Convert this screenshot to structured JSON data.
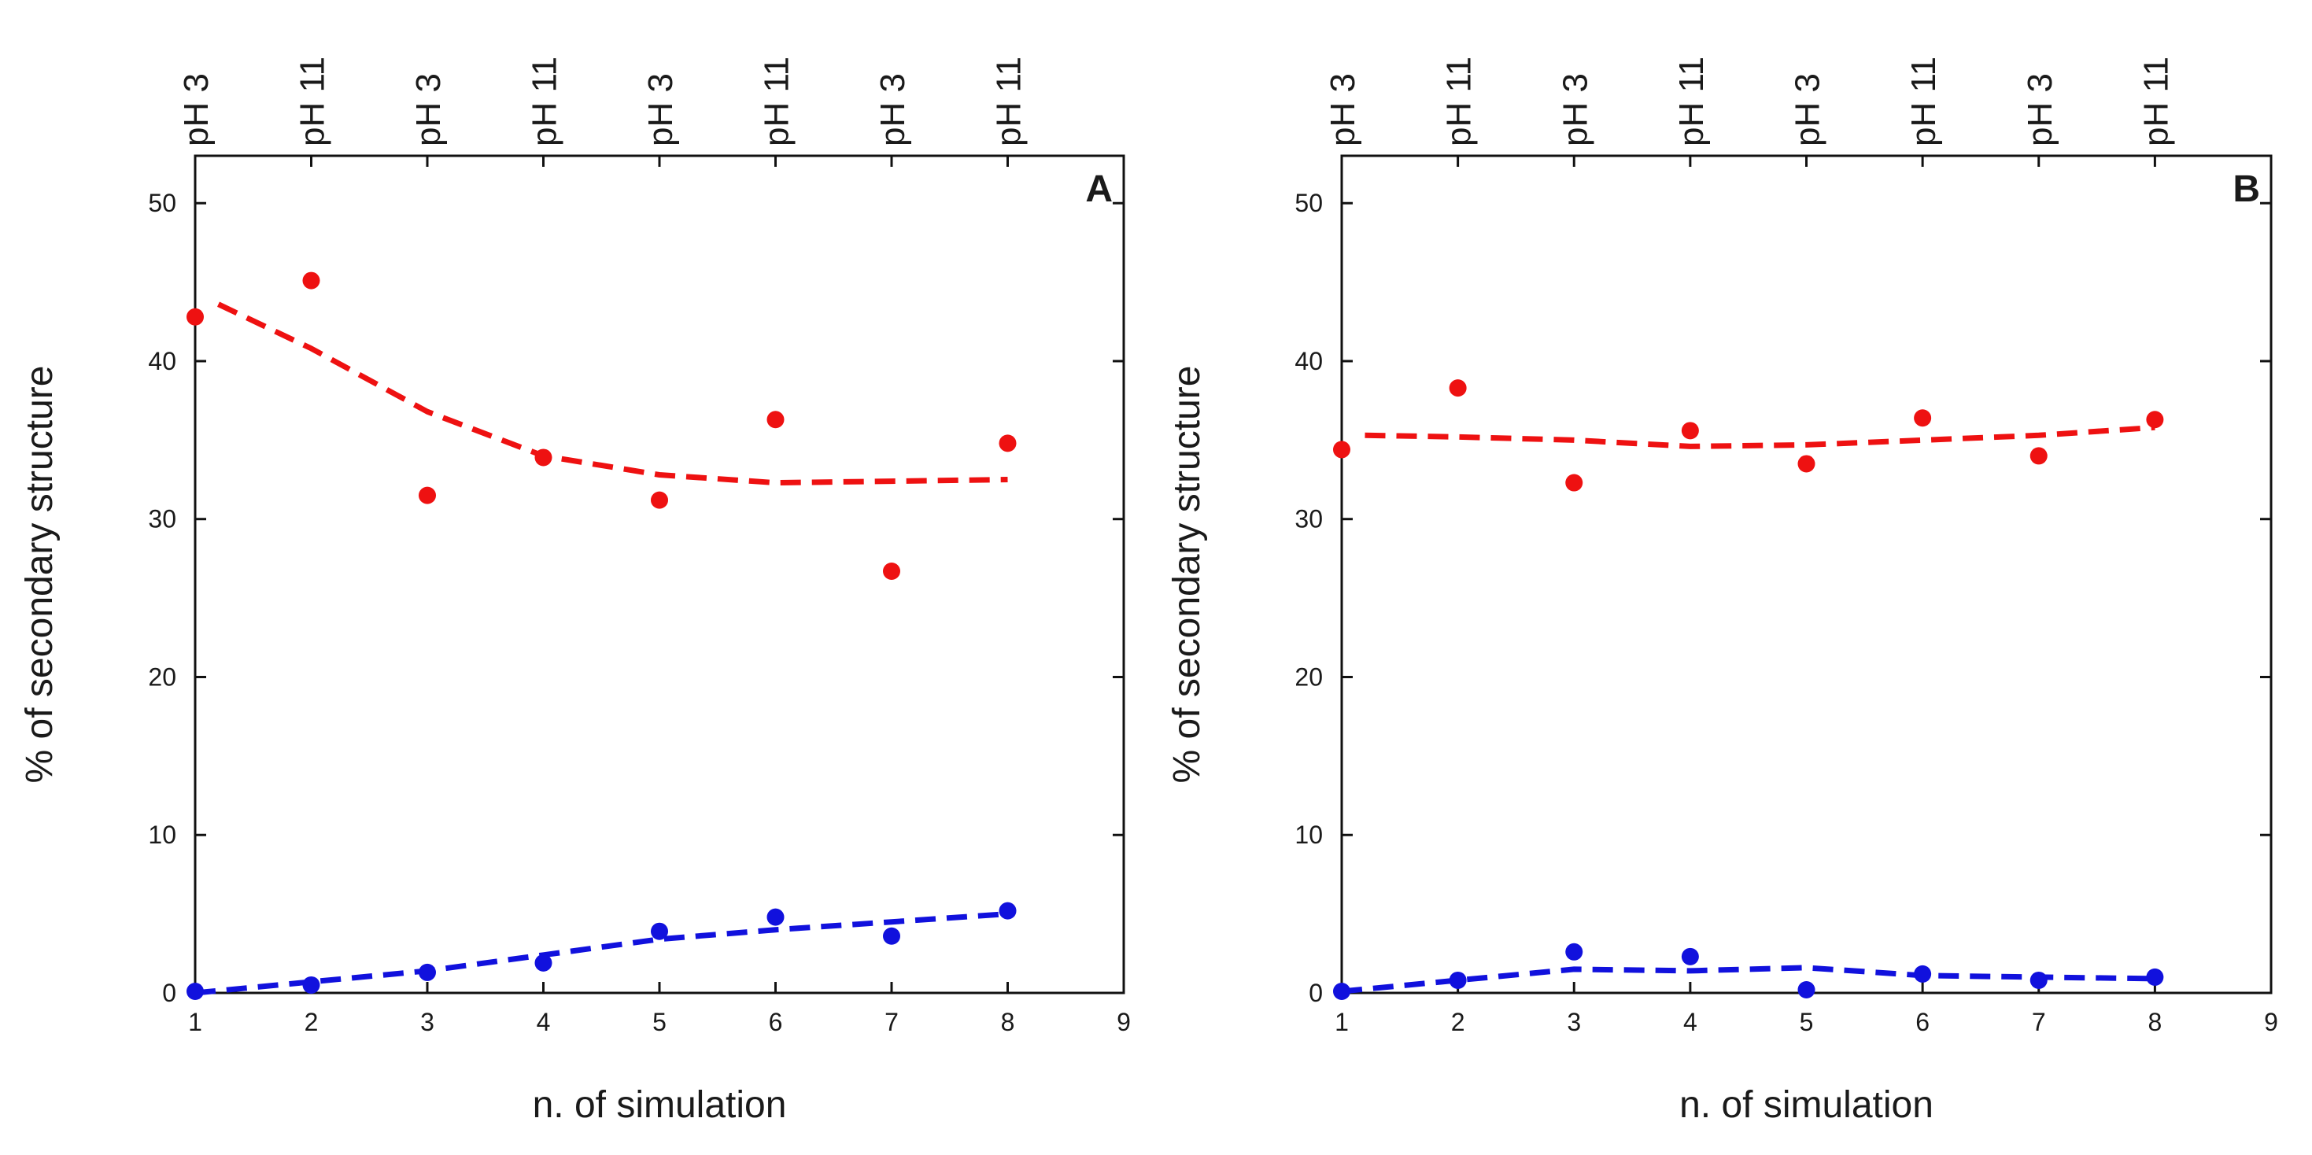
{
  "chart_data": [
    {
      "type": "scatter",
      "panel_label": "A",
      "xlabel": "n. of simulation",
      "ylabel": "% of secondary structure",
      "xlim": [
        1,
        9
      ],
      "ylim": [
        0,
        53
      ],
      "xticks": [
        1,
        2,
        3,
        4,
        5,
        6,
        7,
        8,
        9
      ],
      "yticks": [
        0,
        10,
        20,
        30,
        40,
        50
      ],
      "top_labels": [
        "pH 3",
        "pH 11",
        "pH 3",
        "pH 11",
        "pH 3",
        "pH 11",
        "pH 3",
        "pH 11"
      ],
      "series": [
        {
          "name": "red",
          "color": "#ee1111",
          "x": [
            1,
            2,
            3,
            4,
            5,
            6,
            7,
            8
          ],
          "values": [
            42.8,
            45.1,
            31.5,
            33.9,
            31.2,
            36.3,
            26.7,
            34.8
          ],
          "trend": [
            [
              1.2,
              43.6
            ],
            [
              2,
              40.8
            ],
            [
              3,
              36.8
            ],
            [
              4,
              34.0
            ],
            [
              5,
              32.8
            ],
            [
              6,
              32.3
            ],
            [
              7,
              32.4
            ],
            [
              8,
              32.5
            ]
          ]
        },
        {
          "name": "blue",
          "color": "#1111dd",
          "x": [
            1,
            2,
            3,
            4,
            5,
            6,
            7,
            8
          ],
          "values": [
            0.1,
            0.5,
            1.3,
            1.9,
            3.9,
            4.8,
            3.6,
            5.2
          ],
          "trend": [
            [
              1,
              0.0
            ],
            [
              2,
              0.7
            ],
            [
              3,
              1.4
            ],
            [
              4,
              2.4
            ],
            [
              5,
              3.4
            ],
            [
              6,
              4.0
            ],
            [
              7,
              4.5
            ],
            [
              8,
              5.0
            ]
          ]
        }
      ]
    },
    {
      "type": "scatter",
      "panel_label": "B",
      "xlabel": "n. of simulation",
      "ylabel": "% of secondary structure",
      "xlim": [
        1,
        9
      ],
      "ylim": [
        0,
        53
      ],
      "xticks": [
        1,
        2,
        3,
        4,
        5,
        6,
        7,
        8,
        9
      ],
      "yticks": [
        0,
        10,
        20,
        30,
        40,
        50
      ],
      "top_labels": [
        "pH 3",
        "pH 11",
        "pH 3",
        "pH 11",
        "pH 3",
        "pH 11",
        "pH 3",
        "pH 11"
      ],
      "series": [
        {
          "name": "red",
          "color": "#ee1111",
          "x": [
            1,
            2,
            3,
            4,
            5,
            6,
            7,
            8
          ],
          "values": [
            34.4,
            38.3,
            32.3,
            35.6,
            33.5,
            36.4,
            34.0,
            36.3
          ],
          "trend": [
            [
              1.2,
              35.3
            ],
            [
              2,
              35.2
            ],
            [
              3,
              35.0
            ],
            [
              4,
              34.6
            ],
            [
              5,
              34.7
            ],
            [
              6,
              35.0
            ],
            [
              7,
              35.3
            ],
            [
              8,
              35.8
            ]
          ]
        },
        {
          "name": "blue",
          "color": "#1111dd",
          "x": [
            1,
            2,
            3,
            4,
            5,
            6,
            7,
            8
          ],
          "values": [
            0.1,
            0.8,
            2.6,
            2.3,
            0.2,
            1.2,
            0.8,
            1.0
          ],
          "trend": [
            [
              1,
              0.1
            ],
            [
              2,
              0.8
            ],
            [
              3,
              1.5
            ],
            [
              4,
              1.4
            ],
            [
              5,
              1.6
            ],
            [
              6,
              1.1
            ],
            [
              7,
              1.0
            ],
            [
              8,
              0.9
            ]
          ]
        }
      ]
    }
  ]
}
